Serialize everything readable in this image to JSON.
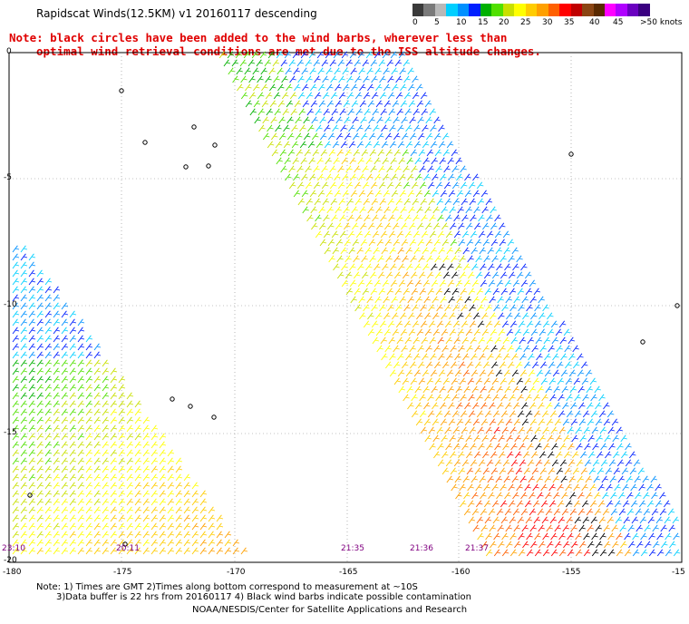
{
  "header": {
    "title": "Rapidscat Winds(12.5KM) v1 20160117 descending",
    "note_line1": "Note: black circles have been added to the wind barbs, wherever less than",
    "note_line2": "optimal wind retrieval conditions are met due to the ISS altitude changes."
  },
  "legend": {
    "labels": [
      "0",
      "5",
      "10",
      "15",
      "20",
      "25",
      "30",
      "35",
      "40",
      "45",
      ">50 knots"
    ],
    "colors": [
      "#3a3a3a",
      "#7a7a7a",
      "#b8b8b8",
      "#00cfff",
      "#0090ff",
      "#0020ff",
      "#00b000",
      "#50e000",
      "#c8e000",
      "#ffff00",
      "#ffcc00",
      "#ffa000",
      "#ff6000",
      "#ff0000",
      "#c00000",
      "#8b4513",
      "#5a2a00",
      "#ff00ff",
      "#b000ff",
      "#6a00c0",
      "#3a0080"
    ]
  },
  "map": {
    "lat_labels": [
      "0",
      "-5",
      "-10",
      "-15",
      "-20"
    ],
    "lon_labels": [
      "-180",
      "-175",
      "-170",
      "-165",
      "-160",
      "-155",
      "-15"
    ],
    "time_labels": [
      {
        "text": "23:10",
        "color": "#800080"
      },
      {
        "text": "20:11",
        "color": "#800080"
      },
      {
        "text": "21:35",
        "color": "#800080"
      },
      {
        "text": "21:36",
        "color": "#800080"
      },
      {
        "text": "21:37",
        "color": "#800080"
      }
    ]
  },
  "footer": {
    "line1": "Note: 1) Times are GMT 2)Times along bottom correspond to measurement at ~10S",
    "line2": "3)Data buffer is 22 hrs from 20160117 4) Black wind barbs indicate possible contamination",
    "line3": "NOAA/NESDIS/Center for Satellite Applications and Research"
  }
}
